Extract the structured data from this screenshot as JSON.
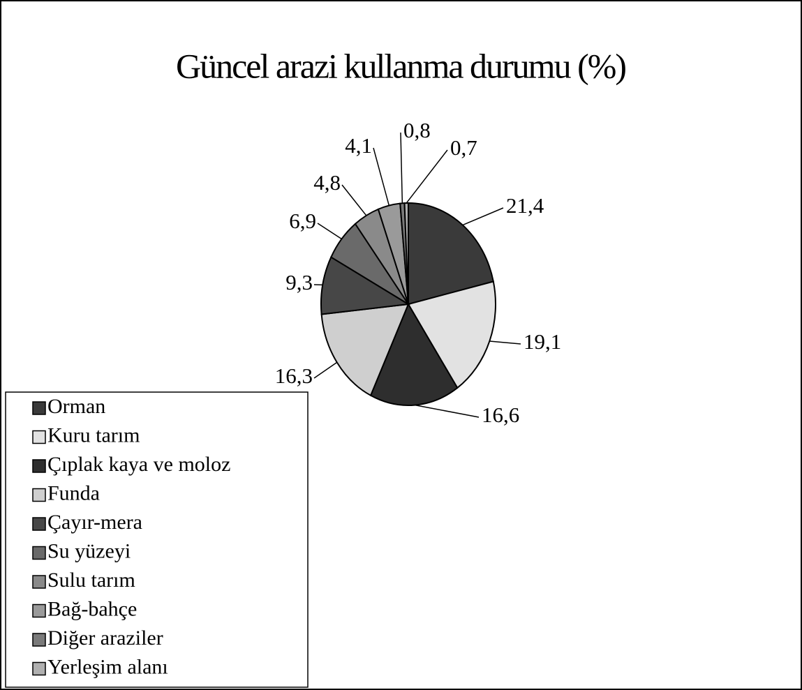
{
  "chart_data": {
    "type": "pie",
    "title": "Güncel arazi kullanma durumu (%)",
    "categories": [
      "Orman",
      "Kuru tarım",
      "Çıplak kaya ve moloz",
      "Funda",
      "Çayır-mera",
      "Su yüzeyi",
      "Sulu tarım",
      "Bağ-bahçe",
      "Diğer araziler",
      "Yerleşim alanı"
    ],
    "values": [
      21.4,
      19.1,
      16.6,
      16.3,
      9.3,
      6.9,
      4.8,
      4.1,
      0.8,
      0.7
    ],
    "value_labels": [
      "21,4",
      "19,1",
      "16,6",
      "16,3",
      "9,3",
      "6,9",
      "4,8",
      "4,1",
      "0,8",
      "0,7"
    ],
    "colors": [
      "#3a3a3a",
      "#e2e2e2",
      "#2e2e2e",
      "#cfcfcf",
      "#474747",
      "#6a6a6a",
      "#8a8a8a",
      "#9a9a9a",
      "#7a7a7a",
      "#b0b0b0"
    ],
    "legend": "bottom-left"
  }
}
